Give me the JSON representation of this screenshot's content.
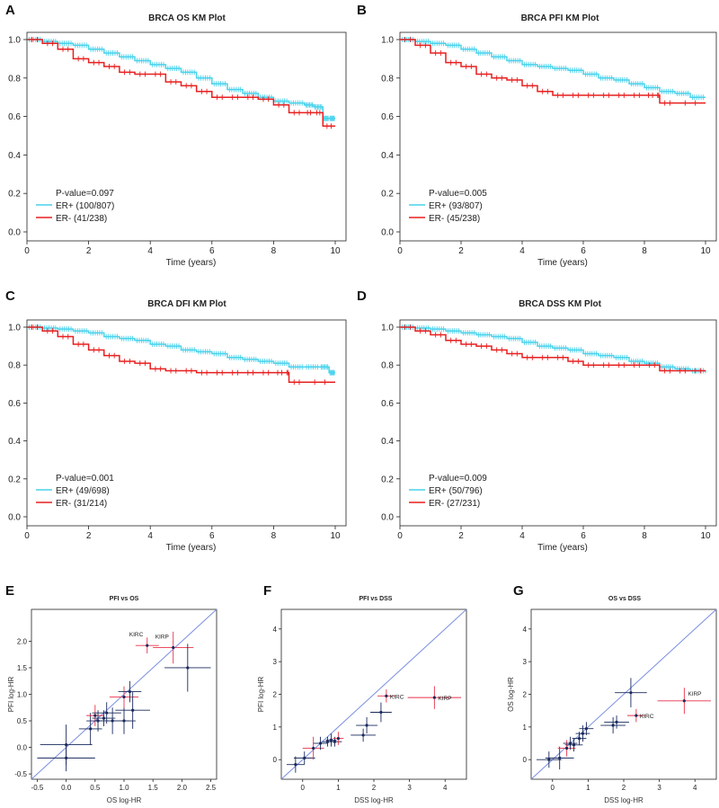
{
  "colors": {
    "er_pos": "#49d2ec",
    "er_neg": "#e81f1f",
    "point": "#1a2a5c",
    "highlight": "#e8304a",
    "diagonal": "#7a8fe0",
    "axis": "#222222"
  },
  "chart_data": [
    {
      "panel": "A",
      "type": "line",
      "title": "BRCA OS KM Plot",
      "xlabel": "Time (years)",
      "ylabel": "",
      "xlim": [
        0,
        10
      ],
      "ylim": [
        0,
        1
      ],
      "xticks": [
        "0",
        "2",
        "4",
        "6",
        "8",
        "10"
      ],
      "yticks": [
        "0.0",
        "0.2",
        "0.4",
        "0.6",
        "0.8",
        "1.0"
      ],
      "legend": {
        "pvalue": "P-value=0.097",
        "pos_label": "ER+ (100/807)",
        "neg_label": "ER-  (41/238)"
      },
      "series": [
        {
          "name": "ER+",
          "x": [
            0,
            0.5,
            1,
            1.5,
            2,
            2.5,
            3,
            3.5,
            4,
            4.5,
            5,
            5.5,
            6,
            6.5,
            7,
            7.5,
            8,
            8.5,
            9,
            9.3,
            9.6,
            9.8,
            10
          ],
          "y": [
            1,
            0.99,
            0.98,
            0.97,
            0.95,
            0.93,
            0.91,
            0.89,
            0.87,
            0.85,
            0.83,
            0.8,
            0.77,
            0.74,
            0.72,
            0.7,
            0.68,
            0.67,
            0.66,
            0.65,
            0.59,
            0.59,
            0.59
          ]
        },
        {
          "name": "ER-",
          "x": [
            0,
            0.5,
            1,
            1.5,
            2,
            2.5,
            3,
            3.5,
            4,
            4.5,
            5,
            5.5,
            6,
            6.5,
            7,
            7.5,
            8,
            8.5,
            9,
            9.3,
            9.6,
            10
          ],
          "y": [
            1,
            0.98,
            0.95,
            0.9,
            0.88,
            0.86,
            0.83,
            0.82,
            0.82,
            0.78,
            0.76,
            0.73,
            0.7,
            0.7,
            0.7,
            0.69,
            0.66,
            0.62,
            0.62,
            0.62,
            0.55,
            0.55
          ]
        }
      ]
    },
    {
      "panel": "B",
      "type": "line",
      "title": "BRCA PFI KM Plot",
      "xlabel": "Time (years)",
      "ylabel": "",
      "xlim": [
        0,
        10
      ],
      "ylim": [
        0,
        1
      ],
      "xticks": [
        "0",
        "2",
        "4",
        "6",
        "8",
        "10"
      ],
      "yticks": [
        "0.0",
        "0.2",
        "0.4",
        "0.6",
        "0.8",
        "1.0"
      ],
      "legend": {
        "pvalue": "P-value=0.005",
        "pos_label": "ER+ (93/807)",
        "neg_label": "ER-  (45/238)"
      },
      "series": [
        {
          "name": "ER+",
          "x": [
            0,
            0.5,
            1,
            1.5,
            2,
            2.5,
            3,
            3.5,
            4,
            4.5,
            5,
            5.5,
            6,
            6.5,
            7,
            7.5,
            8,
            8.5,
            9,
            9.5,
            10
          ],
          "y": [
            1,
            0.99,
            0.98,
            0.97,
            0.95,
            0.93,
            0.91,
            0.89,
            0.87,
            0.86,
            0.85,
            0.84,
            0.82,
            0.8,
            0.79,
            0.77,
            0.75,
            0.73,
            0.72,
            0.7,
            0.7
          ]
        },
        {
          "name": "ER-",
          "x": [
            0,
            0.5,
            1,
            1.5,
            2,
            2.5,
            3,
            3.5,
            4,
            4.5,
            5,
            5.5,
            6,
            6.5,
            7,
            7.5,
            8,
            8.4,
            8.5,
            9,
            10
          ],
          "y": [
            1,
            0.97,
            0.93,
            0.88,
            0.86,
            0.82,
            0.8,
            0.79,
            0.76,
            0.73,
            0.71,
            0.71,
            0.71,
            0.71,
            0.71,
            0.71,
            0.71,
            0.71,
            0.67,
            0.67,
            0.67
          ]
        }
      ]
    },
    {
      "panel": "C",
      "type": "line",
      "title": "BRCA DFI KM Plot",
      "xlabel": "Time (years)",
      "ylabel": "",
      "xlim": [
        0,
        10
      ],
      "ylim": [
        0,
        1
      ],
      "xticks": [
        "0",
        "2",
        "4",
        "6",
        "8",
        "10"
      ],
      "yticks": [
        "0.0",
        "0.2",
        "0.4",
        "0.6",
        "0.8",
        "1.0"
      ],
      "legend": {
        "pvalue": "P-value=0.001",
        "pos_label": "ER+ (49/698)",
        "neg_label": "ER-  (31/214)"
      },
      "series": [
        {
          "name": "ER+",
          "x": [
            0,
            0.5,
            1,
            1.5,
            2,
            2.5,
            3,
            3.5,
            4,
            4.5,
            5,
            5.5,
            6,
            6.5,
            7,
            7.5,
            8,
            8.5,
            9,
            9.5,
            9.8,
            10
          ],
          "y": [
            1,
            0.995,
            0.99,
            0.98,
            0.97,
            0.95,
            0.94,
            0.93,
            0.91,
            0.9,
            0.88,
            0.87,
            0.86,
            0.84,
            0.83,
            0.82,
            0.81,
            0.79,
            0.79,
            0.79,
            0.76,
            0.76
          ]
        },
        {
          "name": "ER-",
          "x": [
            0,
            0.5,
            1,
            1.5,
            2,
            2.5,
            3,
            3.5,
            4,
            4.5,
            5,
            5.5,
            6,
            6.5,
            7,
            7.5,
            8,
            8.4,
            8.5,
            9,
            10
          ],
          "y": [
            1,
            0.98,
            0.95,
            0.91,
            0.88,
            0.85,
            0.82,
            0.81,
            0.78,
            0.77,
            0.77,
            0.76,
            0.76,
            0.76,
            0.76,
            0.76,
            0.76,
            0.76,
            0.71,
            0.71,
            0.71
          ]
        }
      ]
    },
    {
      "panel": "D",
      "type": "line",
      "title": "BRCA DSS KM Plot",
      "xlabel": "Time (years)",
      "ylabel": "",
      "xlim": [
        0,
        10
      ],
      "ylim": [
        0,
        1
      ],
      "xticks": [
        "0",
        "2",
        "4",
        "6",
        "8",
        "10"
      ],
      "yticks": [
        "0.0",
        "0.2",
        "0.4",
        "0.6",
        "0.8",
        "1.0"
      ],
      "legend": {
        "pvalue": "P-value=0.009",
        "pos_label": "ER+ (50/796)",
        "neg_label": "ER-  (27/231)"
      },
      "series": [
        {
          "name": "ER+",
          "x": [
            0,
            0.5,
            1,
            1.5,
            2,
            2.5,
            3,
            3.5,
            4,
            4.5,
            5,
            5.5,
            6,
            6.5,
            7,
            7.5,
            8,
            8.5,
            9,
            9.5,
            10
          ],
          "y": [
            1,
            0.995,
            0.99,
            0.98,
            0.97,
            0.96,
            0.95,
            0.94,
            0.92,
            0.9,
            0.89,
            0.88,
            0.86,
            0.85,
            0.84,
            0.82,
            0.81,
            0.79,
            0.78,
            0.77,
            0.76
          ]
        },
        {
          "name": "ER-",
          "x": [
            0,
            0.5,
            1,
            1.5,
            2,
            2.5,
            3,
            3.5,
            4,
            4.5,
            5,
            5.5,
            6,
            6.5,
            7,
            7.5,
            8,
            8.5,
            9,
            9.5,
            10
          ],
          "y": [
            1,
            0.98,
            0.96,
            0.93,
            0.91,
            0.9,
            0.88,
            0.86,
            0.84,
            0.84,
            0.84,
            0.82,
            0.8,
            0.8,
            0.8,
            0.8,
            0.8,
            0.77,
            0.77,
            0.77,
            0.77
          ]
        }
      ]
    },
    {
      "panel": "E",
      "type": "scatter",
      "title": "PFI vs OS",
      "xlabel": "OS log-HR",
      "ylabel": "PFI log-HR",
      "xlim": [
        -0.6,
        2.6
      ],
      "ylim": [
        -0.6,
        2.6
      ],
      "xticks": [
        "-0.5",
        "0.0",
        "0.5",
        "1.0",
        "1.5",
        "2.0",
        "2.5"
      ],
      "yticks": [
        "-0.5",
        "0.0",
        "0.5",
        "1.0",
        "1.5",
        "2.0"
      ],
      "points": [
        {
          "x": 0.0,
          "y": -0.2,
          "xerr": 0.5,
          "yerr": 0.25,
          "highlight": false,
          "label": ""
        },
        {
          "x": 0.0,
          "y": 0.05,
          "xerr": 0.45,
          "yerr": 0.38,
          "highlight": false,
          "label": ""
        },
        {
          "x": 0.42,
          "y": 0.35,
          "xerr": 0.2,
          "yerr": 0.3,
          "highlight": false,
          "label": ""
        },
        {
          "x": 0.5,
          "y": 0.6,
          "xerr": 0.15,
          "yerr": 0.2,
          "highlight": true,
          "label": ""
        },
        {
          "x": 0.55,
          "y": 0.5,
          "xerr": 0.2,
          "yerr": 0.2,
          "highlight": false,
          "label": ""
        },
        {
          "x": 0.65,
          "y": 0.55,
          "xerr": 0.2,
          "yerr": 0.15,
          "highlight": false,
          "label": ""
        },
        {
          "x": 0.7,
          "y": 0.65,
          "xerr": 0.25,
          "yerr": 0.2,
          "highlight": false,
          "label": ""
        },
        {
          "x": 0.8,
          "y": 0.5,
          "xerr": 0.3,
          "yerr": 0.25,
          "highlight": false,
          "label": ""
        },
        {
          "x": 1.0,
          "y": 0.5,
          "xerr": 0.2,
          "yerr": 0.25,
          "highlight": false,
          "label": ""
        },
        {
          "x": 1.0,
          "y": 0.95,
          "xerr": 0.25,
          "yerr": 0.2,
          "highlight": true,
          "label": ""
        },
        {
          "x": 1.1,
          "y": 1.05,
          "xerr": 0.2,
          "yerr": 0.2,
          "highlight": false,
          "label": ""
        },
        {
          "x": 1.15,
          "y": 0.7,
          "xerr": 0.3,
          "yerr": 0.35,
          "highlight": false,
          "label": ""
        },
        {
          "x": 1.4,
          "y": 1.92,
          "xerr": 0.2,
          "yerr": 0.15,
          "highlight": true,
          "label": "KIRC"
        },
        {
          "x": 1.85,
          "y": 1.88,
          "xerr": 0.35,
          "yerr": 0.3,
          "highlight": true,
          "label": "KIRP"
        },
        {
          "x": 2.1,
          "y": 1.5,
          "xerr": 0.4,
          "yerr": 0.45,
          "highlight": false,
          "label": ""
        }
      ]
    },
    {
      "panel": "F",
      "type": "scatter",
      "title": "PFI vs DSS",
      "xlabel": "DSS log-HR",
      "ylabel": "PFI log-HR",
      "xlim": [
        -0.6,
        4.6
      ],
      "ylim": [
        -0.6,
        4.6
      ],
      "xticks": [
        "0",
        "1",
        "2",
        "3",
        "4"
      ],
      "yticks": [
        "0",
        "1",
        "2",
        "3",
        "4"
      ],
      "points": [
        {
          "x": -0.2,
          "y": -0.15,
          "xerr": 0.25,
          "yerr": 0.25,
          "highlight": false,
          "label": ""
        },
        {
          "x": 0.05,
          "y": 0.05,
          "xerr": 0.3,
          "yerr": 0.2,
          "highlight": false,
          "label": ""
        },
        {
          "x": 0.3,
          "y": 0.35,
          "xerr": 0.3,
          "yerr": 0.35,
          "highlight": true,
          "label": ""
        },
        {
          "x": 0.5,
          "y": 0.5,
          "xerr": 0.2,
          "yerr": 0.2,
          "highlight": false,
          "label": ""
        },
        {
          "x": 0.7,
          "y": 0.55,
          "xerr": 0.15,
          "yerr": 0.15,
          "highlight": false,
          "label": ""
        },
        {
          "x": 0.8,
          "y": 0.6,
          "xerr": 0.15,
          "yerr": 0.2,
          "highlight": false,
          "label": ""
        },
        {
          "x": 0.9,
          "y": 0.55,
          "xerr": 0.2,
          "yerr": 0.15,
          "highlight": false,
          "label": ""
        },
        {
          "x": 1.0,
          "y": 0.65,
          "xerr": 0.15,
          "yerr": 0.2,
          "highlight": true,
          "label": ""
        },
        {
          "x": 1.7,
          "y": 0.75,
          "xerr": 0.35,
          "yerr": 0.2,
          "highlight": false,
          "label": ""
        },
        {
          "x": 1.8,
          "y": 1.05,
          "xerr": 0.3,
          "yerr": 0.25,
          "highlight": false,
          "label": ""
        },
        {
          "x": 2.2,
          "y": 1.45,
          "xerr": 0.3,
          "yerr": 0.3,
          "highlight": false,
          "label": ""
        },
        {
          "x": 2.35,
          "y": 1.95,
          "xerr": 0.25,
          "yerr": 0.2,
          "highlight": true,
          "label": "KIRC"
        },
        {
          "x": 3.7,
          "y": 1.9,
          "xerr": 0.75,
          "yerr": 0.35,
          "highlight": true,
          "label": "KIRP"
        }
      ]
    },
    {
      "panel": "G",
      "type": "scatter",
      "title": "OS vs DSS",
      "xlabel": "DSS log-HR",
      "ylabel": "OS log-HR",
      "xlim": [
        -0.6,
        4.6
      ],
      "ylim": [
        -0.6,
        4.6
      ],
      "xticks": [
        "0",
        "1",
        "2",
        "3",
        "4"
      ],
      "yticks": [
        "0",
        "1",
        "2",
        "3",
        "4"
      ],
      "points": [
        {
          "x": -0.1,
          "y": 0.0,
          "xerr": 0.35,
          "yerr": 0.25,
          "highlight": false,
          "label": ""
        },
        {
          "x": 0.2,
          "y": 0.05,
          "xerr": 0.4,
          "yerr": 0.35,
          "highlight": false,
          "label": ""
        },
        {
          "x": 0.4,
          "y": 0.35,
          "xerr": 0.25,
          "yerr": 0.25,
          "highlight": true,
          "label": ""
        },
        {
          "x": 0.5,
          "y": 0.5,
          "xerr": 0.2,
          "yerr": 0.2,
          "highlight": false,
          "label": ""
        },
        {
          "x": 0.6,
          "y": 0.45,
          "xerr": 0.25,
          "yerr": 0.2,
          "highlight": false,
          "label": ""
        },
        {
          "x": 0.75,
          "y": 0.65,
          "xerr": 0.2,
          "yerr": 0.2,
          "highlight": false,
          "label": ""
        },
        {
          "x": 0.85,
          "y": 0.8,
          "xerr": 0.2,
          "yerr": 0.25,
          "highlight": false,
          "label": ""
        },
        {
          "x": 0.95,
          "y": 0.95,
          "xerr": 0.2,
          "yerr": 0.2,
          "highlight": false,
          "label": ""
        },
        {
          "x": 1.7,
          "y": 1.05,
          "xerr": 0.35,
          "yerr": 0.25,
          "highlight": false,
          "label": ""
        },
        {
          "x": 1.8,
          "y": 1.15,
          "xerr": 0.35,
          "yerr": 0.2,
          "highlight": false,
          "label": ""
        },
        {
          "x": 2.2,
          "y": 2.05,
          "xerr": 0.45,
          "yerr": 0.45,
          "highlight": false,
          "label": ""
        },
        {
          "x": 2.35,
          "y": 1.35,
          "xerr": 0.25,
          "yerr": 0.2,
          "highlight": true,
          "label": "KIRC"
        },
        {
          "x": 3.7,
          "y": 1.8,
          "xerr": 0.75,
          "yerr": 0.4,
          "highlight": true,
          "label": "KIRP"
        }
      ]
    }
  ]
}
